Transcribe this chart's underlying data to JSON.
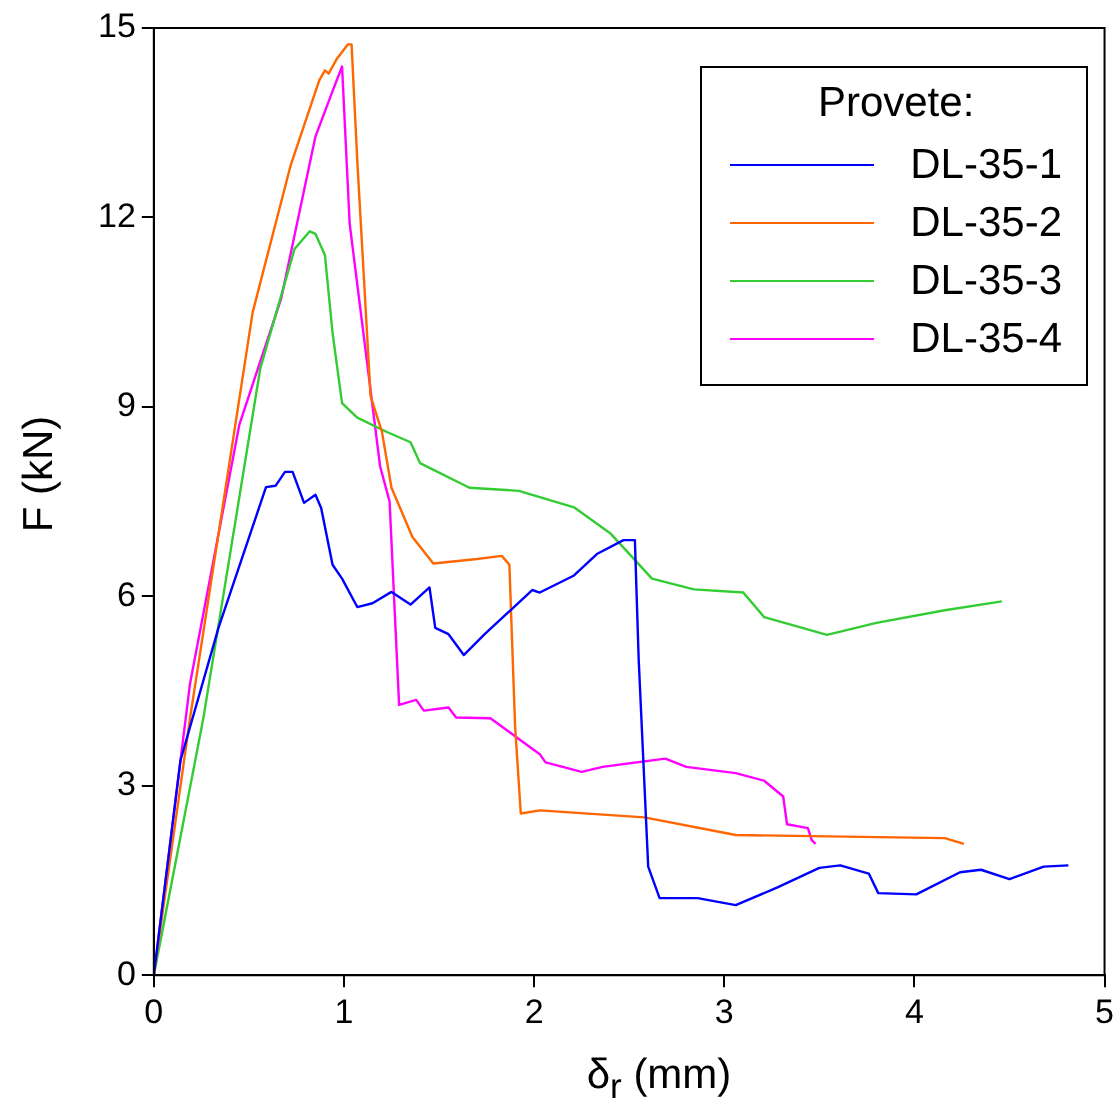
{
  "chart_data": {
    "type": "line",
    "xlabel": "δ$_{r}$ (mm)",
    "ylabel": "F (kN)",
    "legend_title": "Provete:",
    "legend": "top right",
    "grid": false,
    "marker": "none",
    "line_style": "solid",
    "xlim": [
      0,
      5
    ],
    "xticks": [
      0,
      1,
      2,
      3,
      4,
      5
    ],
    "ylim": [
      0,
      15
    ],
    "yticks": [
      0,
      3,
      6,
      9,
      12,
      15
    ],
    "series": [
      {
        "name": "DL-35-1",
        "color": "#0000ff",
        "x": [
          0,
          0.14,
          0.34,
          0.59,
          0.64,
          0.69,
          0.73,
          0.79,
          0.85,
          0.88,
          0.94,
          0.99,
          1.07,
          1.15,
          1.25,
          1.35,
          1.45,
          1.48,
          1.55,
          1.63,
          1.74,
          1.99,
          2.03,
          2.21,
          2.33,
          2.47,
          2.53,
          2.55,
          2.6,
          2.66,
          2.86,
          3.06,
          3.28,
          3.5,
          3.61,
          3.76,
          3.81,
          4.01,
          4.24,
          4.35,
          4.5,
          4.68,
          4.81
        ],
        "values": [
          0,
          3.4,
          5.5,
          7.73,
          7.75,
          7.97,
          7.97,
          7.48,
          7.61,
          7.4,
          6.5,
          6.28,
          5.83,
          5.89,
          6.07,
          5.87,
          6.14,
          5.5,
          5.4,
          5.07,
          5.4,
          6.1,
          6.06,
          6.33,
          6.67,
          6.89,
          6.89,
          5,
          1.72,
          1.22,
          1.22,
          1.11,
          1.39,
          1.7,
          1.74,
          1.61,
          1.3,
          1.28,
          1.63,
          1.67,
          1.52,
          1.72,
          1.74
        ]
      },
      {
        "name": "DL-35-2",
        "color": "#ff6600",
        "x": [
          0,
          0.19,
          0.52,
          0.72,
          0.87,
          0.9,
          0.92,
          0.96,
          1.02,
          1.04,
          1.07,
          1.14,
          1.2,
          1.25,
          1.36,
          1.47,
          1.7,
          1.83,
          1.87,
          1.9,
          1.93,
          2.03,
          2.58,
          3.06,
          4.16,
          4.26
        ],
        "values": [
          0,
          4.06,
          10.5,
          12.83,
          14.17,
          14.33,
          14.28,
          14.5,
          14.74,
          14.74,
          12.9,
          9.17,
          8.6,
          7.72,
          6.94,
          6.52,
          6.59,
          6.64,
          6.5,
          3.94,
          2.56,
          2.61,
          2.5,
          2.22,
          2.17,
          2.08
        ]
      },
      {
        "name": "DL-35-3",
        "color": "#33cc33",
        "x": [
          0,
          0.26,
          0.56,
          0.74,
          0.82,
          0.85,
          0.9,
          0.94,
          0.99,
          1.07,
          1.22,
          1.35,
          1.4,
          1.66,
          1.92,
          2.21,
          2.4,
          2.62,
          2.84,
          3.1,
          3.21,
          3.41,
          3.54,
          3.8,
          4.16,
          4.46
        ],
        "values": [
          0,
          4.06,
          9.61,
          11.5,
          11.78,
          11.74,
          11.4,
          10.17,
          9.06,
          8.83,
          8.61,
          8.44,
          8.11,
          7.72,
          7.67,
          7.41,
          7,
          6.28,
          6.11,
          6.06,
          5.67,
          5.5,
          5.39,
          5.58,
          5.78,
          5.92
        ]
      },
      {
        "name": "DL-35-4",
        "color": "#ff00ff",
        "x": [
          0,
          0.19,
          0.45,
          0.67,
          0.85,
          0.94,
          0.99,
          1.03,
          1.19,
          1.24,
          1.29,
          1.38,
          1.42,
          1.55,
          1.59,
          1.77,
          1.92,
          2.03,
          2.06,
          2.25,
          2.36,
          2.69,
          2.8,
          3.06,
          3.21,
          3.31,
          3.33,
          3.44,
          3.46,
          3.48
        ],
        "values": [
          0,
          4.61,
          8.72,
          10.72,
          13.28,
          14,
          14.39,
          11.9,
          8.06,
          7.5,
          4.28,
          4.36,
          4.19,
          4.24,
          4.08,
          4.07,
          3.74,
          3.5,
          3.37,
          3.22,
          3.3,
          3.43,
          3.3,
          3.2,
          3.08,
          2.83,
          2.39,
          2.33,
          2.14,
          2.08
        ]
      }
    ]
  }
}
